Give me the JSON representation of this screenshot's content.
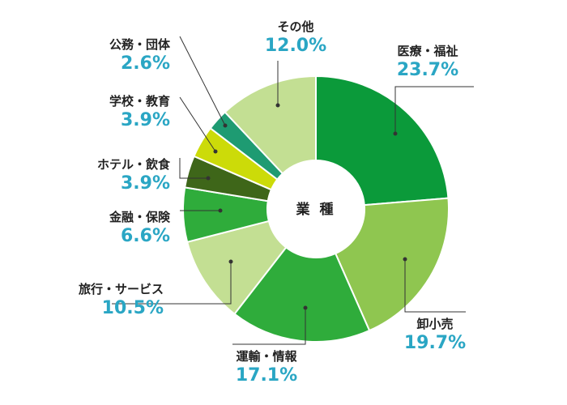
{
  "chart_data": {
    "type": "pie",
    "title": "",
    "center_label": "業 種",
    "slices": [
      {
        "label": "医療・福祉",
        "value": 23.7,
        "value_text": "23.7%",
        "color": "#0b9a3a"
      },
      {
        "label": "卸小売",
        "value": 19.7,
        "value_text": "19.7%",
        "color": "#8fc650"
      },
      {
        "label": "運輸・情報",
        "value": 17.1,
        "value_text": "17.1%",
        "color": "#2fac3b"
      },
      {
        "label": "旅行・サービス",
        "value": 10.5,
        "value_text": "10.5%",
        "color": "#c3df93"
      },
      {
        "label": "金融・保険",
        "value": 6.6,
        "value_text": "6.6%",
        "color": "#2fac3b"
      },
      {
        "label": "ホテル・飲食",
        "value": 3.9,
        "value_text": "3.9%",
        "color": "#3e6619"
      },
      {
        "label": "学校・教育",
        "value": 3.9,
        "value_text": "3.9%",
        "color": "#ccdb09"
      },
      {
        "label": "公務・団体",
        "value": 2.6,
        "value_text": "2.6%",
        "color": "#1e9b72"
      },
      {
        "label": "その他",
        "value": 12.0,
        "value_text": "12.0%",
        "color": "#c3df93"
      }
    ]
  },
  "colors": {
    "percent_text": "#2aa6c4",
    "leader_line": "#333333"
  }
}
